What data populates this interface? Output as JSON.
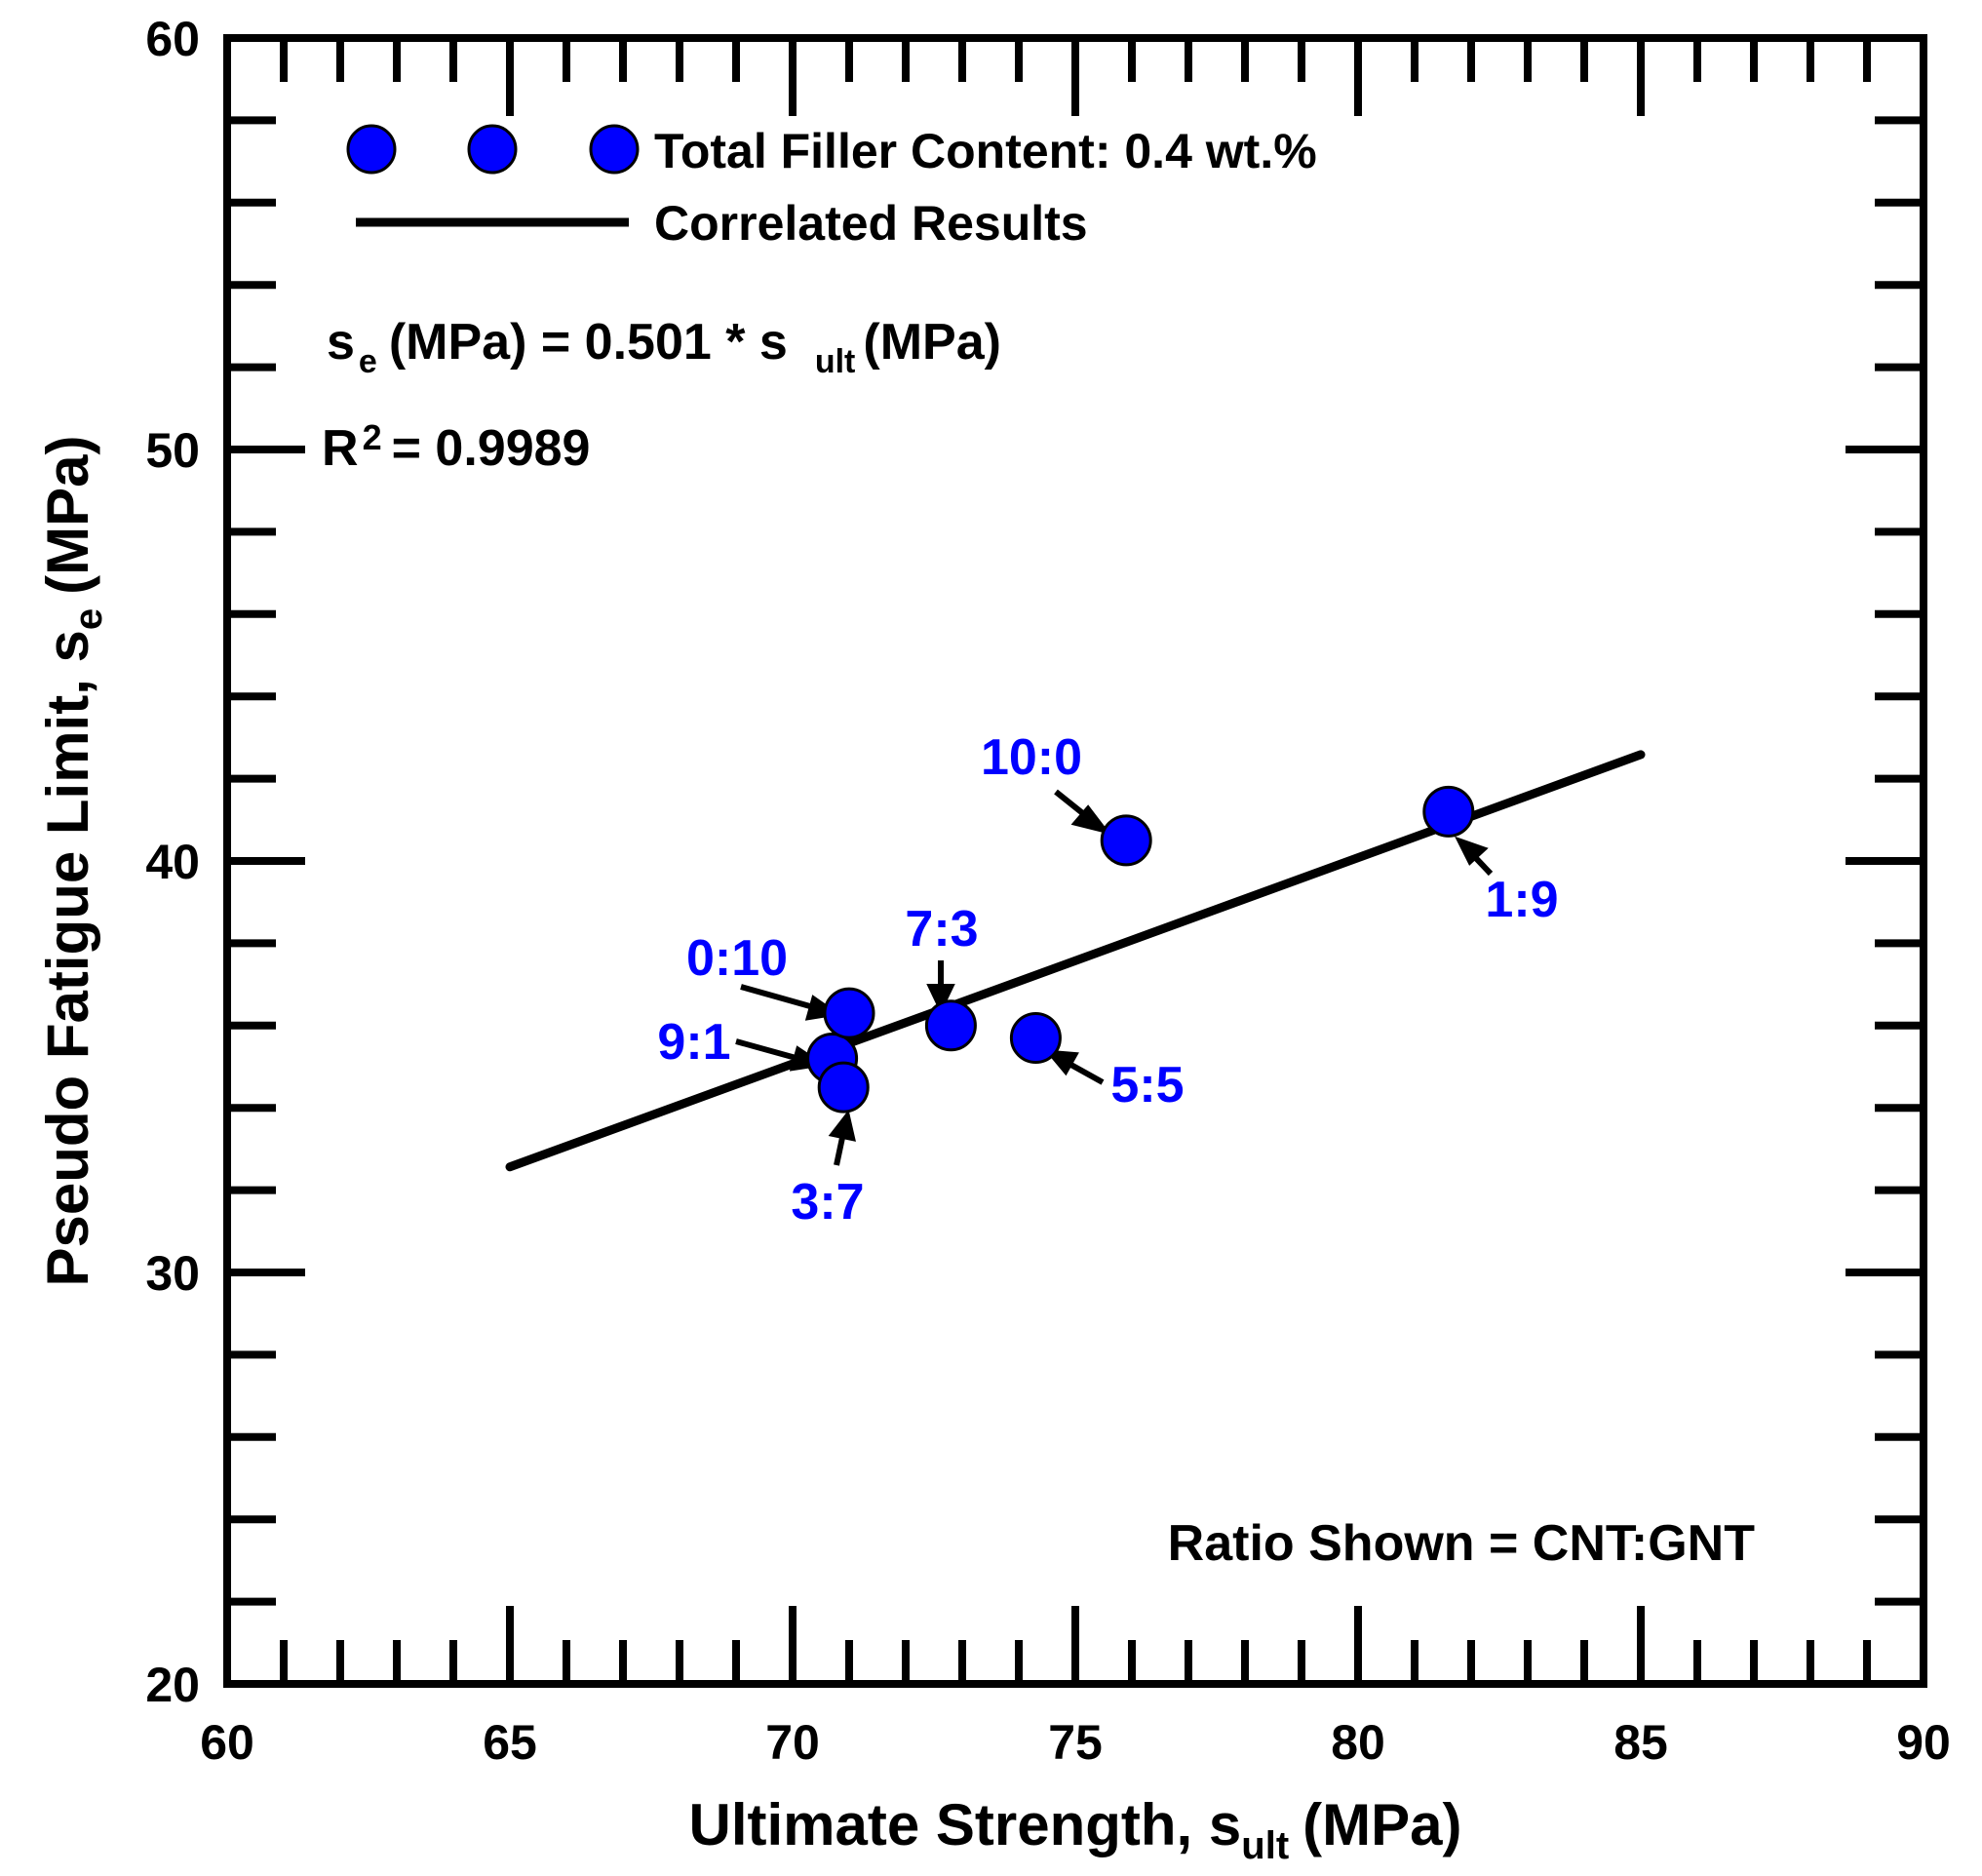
{
  "chart_data": {
    "type": "scatter",
    "xlabel": {
      "main": "Ultimate Strength, s",
      "sub": "ult",
      "unit": "(MPa)"
    },
    "ylabel": {
      "main": "Pseudo Fatigue Limit, s",
      "sub": "e",
      "unit": "(MPa)"
    },
    "xlim": [
      60,
      90
    ],
    "ylim": [
      20,
      60
    ],
    "x_ticks": [
      "60",
      "65",
      "70",
      "75",
      "80",
      "85",
      "90"
    ],
    "y_ticks": [
      "20",
      "30",
      "40",
      "50",
      "60"
    ],
    "point_color": "#0000ff",
    "line_color": "#000000",
    "series": [
      {
        "name": "Total Filler Content: 0.4 wt.%",
        "points": [
          {
            "label": "10:0",
            "x": 75.9,
            "y": 40.5
          },
          {
            "label": "9:1",
            "x": 70.7,
            "y": 35.2
          },
          {
            "label": "7:3",
            "x": 72.8,
            "y": 36.0
          },
          {
            "label": "5:5",
            "x": 74.3,
            "y": 35.7
          },
          {
            "label": "3:7",
            "x": 70.9,
            "y": 34.5
          },
          {
            "label": "1:9",
            "x": 81.6,
            "y": 41.2
          },
          {
            "label": "0:10",
            "x": 71.0,
            "y": 36.3
          }
        ]
      }
    ],
    "fit_line": {
      "name": "Correlated Results",
      "slope": 0.501,
      "x_range": [
        65,
        85
      ]
    },
    "legend": {
      "series_label": "Total Filler Content: 0.4 wt.%",
      "line_label": "Correlated Results",
      "placement": "top-left"
    },
    "annotations": {
      "equation": {
        "s1": "s",
        "sub1": "e",
        "mid": "(MPa) = 0.501 * s",
        "sub2": "ult",
        "end": "(MPa)"
      },
      "r2": {
        "r": "R",
        "sup": "2",
        "value": "= 0.9989"
      },
      "ratio_note": "Ratio Shown = CNT:GNT"
    }
  }
}
